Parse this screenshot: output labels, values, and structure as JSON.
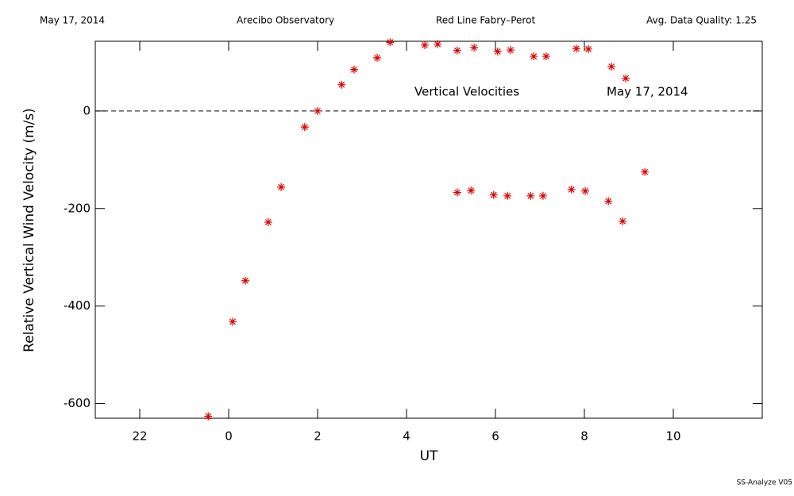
{
  "chart_data": {
    "type": "scatter",
    "header": [
      "May 17, 2014",
      "Arecibo Observatory",
      "Red Line Fabry–Perot",
      "Avg. Data Quality: 1.25"
    ],
    "annotations": [
      "Vertical Velocities",
      "May 17, 2014"
    ],
    "footer": "SS-Analyze V05",
    "x_label": "UT",
    "y_label": "Relative Vertical Wind Velocity (m/s)",
    "xlim": [
      -3,
      12
    ],
    "ylim": [
      -630,
      143
    ],
    "xticks": [
      {
        "value": -2,
        "label": "22"
      },
      0,
      2,
      4,
      6,
      8,
      10
    ],
    "yticks": [
      -600,
      -400,
      -200,
      0
    ],
    "hline": 0,
    "series": [
      {
        "color": "#e00000",
        "x": [
          -0.46,
          0.09,
          0.375,
          0.89,
          1.18,
          1.71,
          2.0,
          2.54,
          2.82,
          3.34,
          3.63,
          4.41,
          4.7,
          5.14,
          5.52,
          6.05,
          6.34,
          6.86,
          7.14,
          7.82,
          8.09,
          8.61,
          8.93,
          5.14,
          5.45,
          5.96,
          6.27,
          6.79,
          7.07,
          7.71,
          8.02,
          8.54,
          8.86,
          9.36
        ],
        "values": [
          -626,
          -432,
          -348,
          -228,
          -156,
          -33,
          0,
          54,
          85,
          109,
          141,
          135,
          137,
          124,
          130,
          122,
          125,
          112,
          112,
          128,
          127,
          91,
          67,
          -167,
          -163,
          -172,
          -174,
          -174,
          -174,
          -161,
          -164,
          -185,
          -226,
          -125
        ]
      }
    ]
  }
}
